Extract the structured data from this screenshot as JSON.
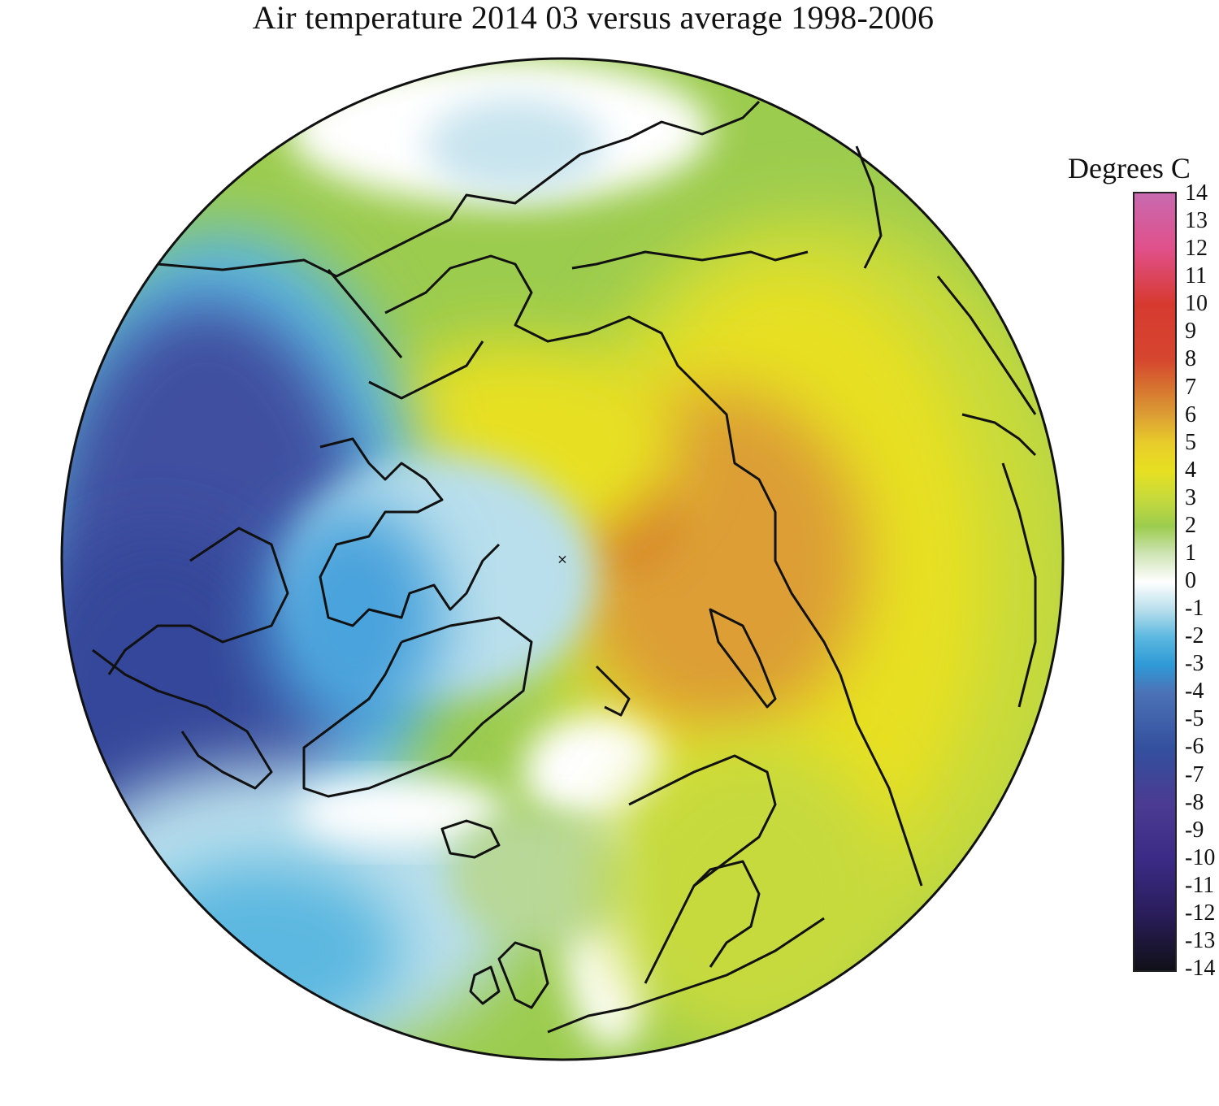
{
  "title": "Air temperature 2014 03 versus average 1998-2006",
  "legend": {
    "title": "Degrees C",
    "ticks": [
      "14",
      "13",
      "12",
      "11",
      "10",
      "9",
      "8",
      "7",
      "6",
      "5",
      "4",
      "3",
      "2",
      "1",
      "0",
      "-1",
      "-2",
      "-3",
      "-4",
      "-5",
      "-6",
      "-7",
      "-8",
      "-9",
      "-10",
      "-11",
      "-12",
      "-13",
      "-14"
    ],
    "range": [
      -14,
      14
    ],
    "colors": {
      "-14": "#101018",
      "-12": "#2a1d5a",
      "-10": "#3b2b86",
      "-8": "#4b3b92",
      "-6": "#33509e",
      "-4": "#4c72b6",
      "-3": "#2f9ad6",
      "-2": "#5cb8e0",
      "-1": "#b9dfec",
      "0": "#ffffff",
      "1": "#cfe4b6",
      "2": "#9ccc4e",
      "3": "#c6da3c",
      "4": "#e7e021",
      "5": "#e8cc2a",
      "6": "#dc9e34",
      "7": "#d6732f",
      "8": "#d6462f",
      "10": "#d63a2f",
      "12": "#e0508a",
      "14": "#c86ab0"
    }
  },
  "map": {
    "projection": "north polar stereographic",
    "pole_marker": "×",
    "anomaly_colors": {
      "strong_cold": "#3f4fa0",
      "cold": "#4aa3dc",
      "cool": "#b9dfec",
      "neutral": "#ffffff",
      "mild": "#9ccc4e",
      "warm": "#e7e021",
      "hot": "#d6802f"
    }
  }
}
